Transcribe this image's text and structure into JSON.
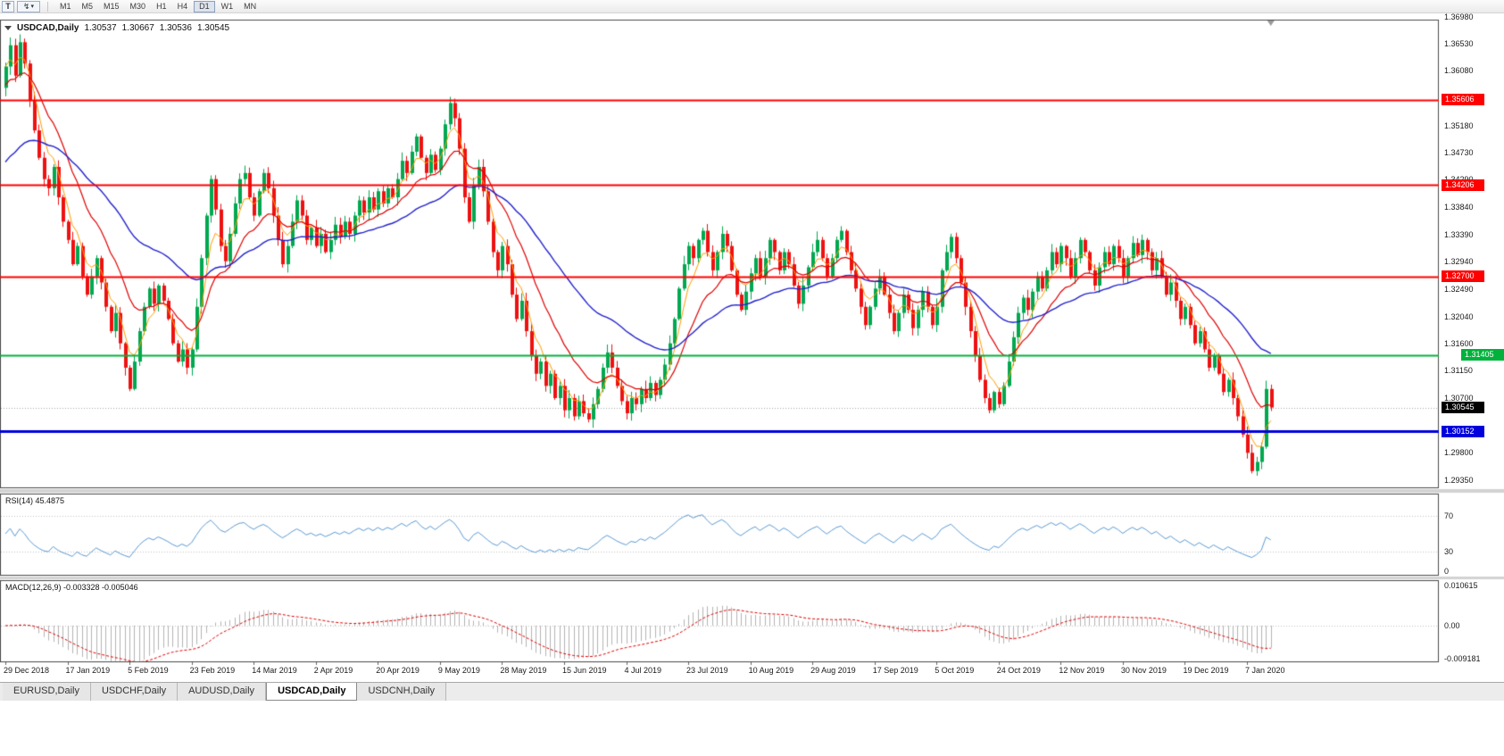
{
  "toolbar": {
    "chart_button": "T",
    "cursor_button_glyph": "↯",
    "dropdown_glyph": "▾",
    "timeframes": [
      "M1",
      "M5",
      "M15",
      "M30",
      "H1",
      "H4",
      "D1",
      "W1",
      "MN"
    ],
    "active_timeframe": "D1"
  },
  "chart_header": {
    "symbol": "USDCAD,Daily",
    "open": "1.30537",
    "high": "1.30667",
    "low": "1.30536",
    "close": "1.30545"
  },
  "indicators": {
    "rsi_label": "RSI(14) 45.4875",
    "macd_label": "MACD(12,26,9) -0.003328 -0.005046"
  },
  "tabs": [
    "EURUSD,Daily",
    "USDCHF,Daily",
    "AUDUSD,Daily",
    "USDCAD,Daily",
    "USDCNH,Daily"
  ],
  "active_tab": "USDCAD,Daily",
  "chart_data": {
    "type": "candlestick",
    "symbol": "USDCAD",
    "timeframe": "Daily",
    "ohlc_display": {
      "open": 1.30537,
      "high": 1.30667,
      "low": 1.30536,
      "close": 1.30545
    },
    "y_range": {
      "top": 1.36921,
      "bottom": 1.29218
    },
    "y_ticks": [
      "1.36980",
      "1.36530",
      "1.36080",
      "1.35180",
      "1.34730",
      "1.34290",
      "1.33840",
      "1.33390",
      "1.32940",
      "1.32490",
      "1.32040",
      "1.31600",
      "1.31150",
      "1.30700",
      "1.29800",
      "1.29350"
    ],
    "x_labels": [
      "29 Dec 2018",
      "17 Jan 2019",
      "5 Feb 2019",
      "23 Feb 2019",
      "14 Mar 2019",
      "2 Apr 2019",
      "20 Apr 2019",
      "9 May 2019",
      "28 May 2019",
      "15 Jun 2019",
      "4 Jul 2019",
      "23 Jul 2019",
      "10 Aug 2019",
      "29 Aug 2019",
      "17 Sep 2019",
      "5 Oct 2019",
      "24 Oct 2019",
      "12 Nov 2019",
      "30 Nov 2019",
      "19 Dec 2019",
      "7 Jan 2020"
    ],
    "hlines": [
      {
        "price": 1.35606,
        "label": "1.35606",
        "color": "#ff0000",
        "width": 2,
        "label_offset": 0
      },
      {
        "price": 1.34206,
        "label": "1.34206",
        "color": "#ff0000",
        "width": 2,
        "label_offset": 0
      },
      {
        "price": 1.327,
        "label": "1.32700",
        "color": "#ff0000",
        "width": 2,
        "label_offset": 0
      },
      {
        "price": 1.31405,
        "label": "1.31405",
        "color": "#00b23c",
        "width": 2,
        "label_offset": 22
      },
      {
        "price": 1.30152,
        "label": "1.30152",
        "color": "#0000dd",
        "width": 3,
        "label_offset": 0
      }
    ],
    "current_price": {
      "value": 1.30545,
      "label": "1.30545",
      "color": "#000000"
    },
    "up_color": "#00a84f",
    "down_color": "#ee1111",
    "moving_averages": [
      {
        "name": "fast",
        "period": 5,
        "seed": 1.3615,
        "color": "#ff9c00",
        "width": 1
      },
      {
        "name": "medium",
        "period": 14,
        "seed": 1.358,
        "color": "#e00000",
        "width": 1.2
      },
      {
        "name": "slow",
        "period": 40,
        "seed": 1.345,
        "color": "#2222cc",
        "width": 1.4
      }
    ],
    "rsi": {
      "period": 14,
      "value": 45.4875,
      "levels": [
        70,
        30
      ],
      "axis_labels": [
        "70",
        "30",
        "0"
      ],
      "color": "#5b9bd5"
    },
    "macd": {
      "fast": 12,
      "slow": 26,
      "signal": 9,
      "value": -0.003328,
      "signal_value": -0.005046,
      "axis_labels": [
        "0.010615",
        "0.00",
        "-0.009181"
      ],
      "hist_color": "#b4b4b4",
      "signal_color": "#e00000"
    },
    "closes": [
      1.3615,
      1.365,
      1.36,
      1.3655,
      1.362,
      1.356,
      1.351,
      1.3465,
      1.343,
      1.3415,
      1.345,
      1.34,
      1.336,
      1.333,
      1.329,
      1.332,
      1.327,
      1.324,
      1.327,
      1.33,
      1.326,
      1.322,
      1.318,
      1.321,
      1.316,
      1.312,
      1.3085,
      1.313,
      1.318,
      1.322,
      1.325,
      1.3225,
      1.3255,
      1.323,
      1.32,
      1.316,
      1.313,
      1.315,
      1.312,
      1.315,
      1.322,
      1.33,
      1.337,
      1.343,
      1.338,
      1.332,
      1.3295,
      1.334,
      1.339,
      1.343,
      1.344,
      1.34,
      1.337,
      1.341,
      1.344,
      1.3415,
      1.337,
      1.333,
      1.329,
      1.332,
      1.336,
      1.3395,
      1.337,
      1.333,
      1.335,
      1.332,
      1.334,
      1.331,
      1.333,
      1.3355,
      1.3335,
      1.336,
      1.334,
      1.337,
      1.3395,
      1.3375,
      1.34,
      1.338,
      1.341,
      1.339,
      1.3415,
      1.34,
      1.343,
      1.346,
      1.344,
      1.3475,
      1.35,
      1.3465,
      1.344,
      1.347,
      1.3445,
      1.348,
      1.352,
      1.3555,
      1.353,
      1.348,
      1.34,
      1.336,
      1.342,
      1.345,
      1.341,
      1.336,
      1.331,
      1.328,
      1.332,
      1.329,
      1.324,
      1.32,
      1.323,
      1.318,
      1.314,
      1.311,
      1.313,
      1.309,
      1.311,
      1.307,
      1.309,
      1.305,
      1.307,
      1.304,
      1.3065,
      1.3045,
      1.3035,
      1.306,
      1.3085,
      1.312,
      1.3145,
      1.312,
      1.309,
      1.3065,
      1.3045,
      1.307,
      1.306,
      1.3085,
      1.307,
      1.3095,
      1.3075,
      1.31,
      1.3125,
      1.316,
      1.32,
      1.325,
      1.329,
      1.332,
      1.33,
      1.333,
      1.3345,
      1.331,
      1.328,
      1.331,
      1.334,
      1.332,
      1.328,
      1.324,
      1.3215,
      1.3245,
      1.3275,
      1.33,
      1.327,
      1.33,
      1.333,
      1.331,
      1.328,
      1.331,
      1.329,
      1.3255,
      1.3225,
      1.3255,
      1.3285,
      1.331,
      1.333,
      1.33,
      1.327,
      1.33,
      1.333,
      1.3345,
      1.331,
      1.328,
      1.325,
      1.322,
      1.319,
      1.322,
      1.325,
      1.327,
      1.324,
      1.321,
      1.318,
      1.321,
      1.324,
      1.3215,
      1.3185,
      1.3215,
      1.3245,
      1.322,
      1.319,
      1.322,
      1.328,
      1.331,
      1.3335,
      1.33,
      1.326,
      1.322,
      1.318,
      1.314,
      1.31,
      1.307,
      1.305,
      1.308,
      1.306,
      1.309,
      1.313,
      1.317,
      1.321,
      1.3235,
      1.3215,
      1.3245,
      1.327,
      1.325,
      1.328,
      1.331,
      1.329,
      1.332,
      1.33,
      1.327,
      1.33,
      1.333,
      1.331,
      1.328,
      1.3255,
      1.3285,
      1.331,
      1.329,
      1.332,
      1.33,
      1.327,
      1.33,
      1.3325,
      1.3305,
      1.333,
      1.331,
      1.328,
      1.33,
      1.327,
      1.324,
      1.326,
      1.323,
      1.32,
      1.322,
      1.319,
      1.316,
      1.318,
      1.315,
      1.312,
      1.314,
      1.311,
      1.308,
      1.31,
      1.307,
      1.304,
      1.301,
      1.298,
      1.295,
      1.2965,
      1.299,
      1.3085,
      1.30545
    ]
  }
}
